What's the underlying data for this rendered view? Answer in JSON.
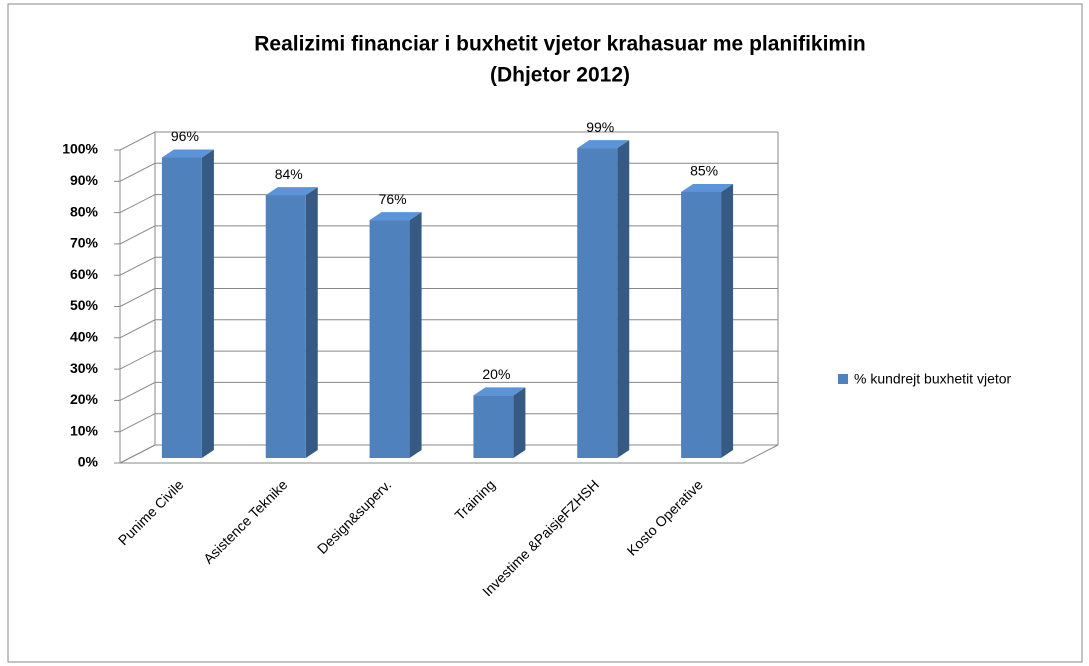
{
  "chart_data": {
    "type": "bar",
    "title": "Realizimi financiar i buxhetit vjetor krahasuar me planifikimin",
    "subtitle": "(Dhjetor 2012)",
    "categories": [
      "Punime Civile",
      "Asistence Teknike",
      "Design&superv.",
      "Training",
      "Investime &PaisjeFZHSH",
      "Kosto Operative"
    ],
    "series": [
      {
        "name": "% kundrejt buxhetit vjetor",
        "color": "#4f81bd",
        "values": [
          96,
          84,
          76,
          20,
          99,
          85
        ],
        "value_labels": [
          "96%",
          "84%",
          "76%",
          "20%",
          "99%",
          "85%"
        ]
      }
    ],
    "ylim": [
      0,
      100
    ],
    "yticks": [
      {
        "value": 0,
        "label": "0%"
      },
      {
        "value": 10,
        "label": "10%"
      },
      {
        "value": 20,
        "label": "20%"
      },
      {
        "value": 30,
        "label": "30%"
      },
      {
        "value": 40,
        "label": "40%"
      },
      {
        "value": 50,
        "label": "50%"
      },
      {
        "value": 60,
        "label": "60%"
      },
      {
        "value": 70,
        "label": "70%"
      },
      {
        "value": 80,
        "label": "80%"
      },
      {
        "value": 90,
        "label": "90%"
      },
      {
        "value": 100,
        "label": "100%"
      }
    ],
    "grid": true,
    "legend": "right"
  }
}
